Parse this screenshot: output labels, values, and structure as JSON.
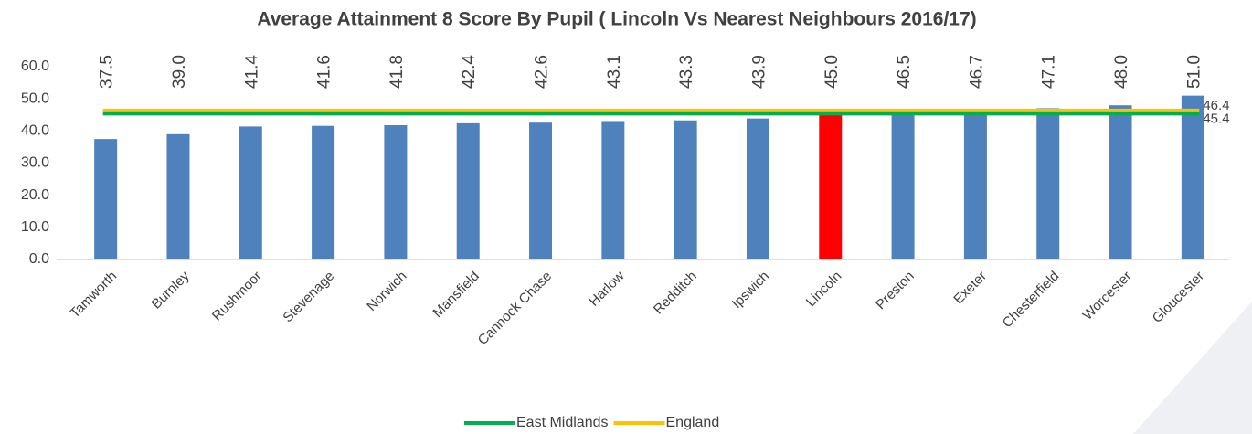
{
  "chart_data": {
    "type": "bar",
    "title": "Average Attainment 8 Score By Pupil ( Lincoln Vs Nearest Neighbours 2016/17)",
    "categories": [
      "Tamworth",
      "Burnley",
      "Rushmoor",
      "Stevenage",
      "Norwich",
      "Mansfield",
      "Cannock Chase",
      "Harlow",
      "Redditch",
      "Ipswich",
      "Lincoln",
      "Preston",
      "Exeter",
      "Chesterfield",
      "Worcester",
      "Gloucester"
    ],
    "values": [
      37.5,
      39.0,
      41.4,
      41.6,
      41.8,
      42.4,
      42.6,
      43.1,
      43.3,
      43.9,
      45.0,
      46.5,
      46.7,
      47.1,
      48.0,
      51.0
    ],
    "value_labels": [
      "37.5",
      "39.0",
      "41.4",
      "41.6",
      "41.8",
      "42.4",
      "42.6",
      "43.1",
      "43.3",
      "43.9",
      "45.0",
      "46.5",
      "46.7",
      "47.1",
      "48.0",
      "51.0"
    ],
    "colors": [
      "#4f81bd",
      "#4f81bd",
      "#4f81bd",
      "#4f81bd",
      "#4f81bd",
      "#4f81bd",
      "#4f81bd",
      "#4f81bd",
      "#4f81bd",
      "#4f81bd",
      "#ff0000",
      "#4f81bd",
      "#4f81bd",
      "#4f81bd",
      "#4f81bd",
      "#4f81bd"
    ],
    "ylim": [
      0,
      60
    ],
    "yticks": [
      {
        "value": 0,
        "label": "0.0"
      },
      {
        "value": 10,
        "label": "10.0"
      },
      {
        "value": 20,
        "label": "20.0"
      },
      {
        "value": 30,
        "label": "30.0"
      },
      {
        "value": 40,
        "label": "40.0"
      },
      {
        "value": 50,
        "label": "50.0"
      },
      {
        "value": 60,
        "label": "60.0"
      }
    ],
    "reference_lines": [
      {
        "name": "East Midlands",
        "color": "#00b050",
        "value": 45.4
      },
      {
        "name": "England",
        "color": "#ffc000",
        "value": 46.4
      }
    ]
  }
}
